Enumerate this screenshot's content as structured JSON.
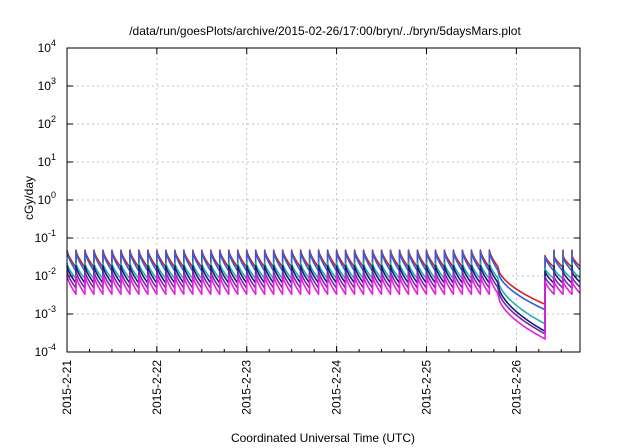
{
  "chart_data": {
    "type": "line",
    "title": "/data/run/goesPlots/archive/2015-02-26/17:00/bryn/../bryn/5daysMars.plot",
    "xlabel": "Coordinated Universal Time (UTC)",
    "ylabel": "cGy/day",
    "y_scale": "log",
    "ylim": [
      0.0001,
      10000
    ],
    "xlim": [
      "2015-02-21 00:00",
      "2015-02-26 17:00"
    ],
    "x_ticks": [
      "2015-2-21",
      "2015-2-22",
      "2015-2-23",
      "2015-2-24",
      "2015-2-25",
      "2015-2-26"
    ],
    "y_ticks": [
      {
        "base": "10",
        "exp": "-4"
      },
      {
        "base": "10",
        "exp": "-3"
      },
      {
        "base": "10",
        "exp": "-2"
      },
      {
        "base": "10",
        "exp": "-1"
      },
      {
        "base": "10",
        "exp": "0"
      },
      {
        "base": "10",
        "exp": "1"
      },
      {
        "base": "10",
        "exp": "2"
      },
      {
        "base": "10",
        "exp": "3"
      },
      {
        "base": "10",
        "exp": "4"
      }
    ],
    "grid": true,
    "legend": "none",
    "sawtooth_period_hours": 2.4,
    "gap": {
      "start": "2015-02-25 19:00",
      "end": "2015-02-26 07:40"
    },
    "series": [
      {
        "color": "#d62020",
        "peak": 0.048,
        "trough": 0.017,
        "gap_end": 0.0018
      },
      {
        "color": "#2f5fd8",
        "peak": 0.045,
        "trough": 0.0135,
        "gap_end": 0.0013
      },
      {
        "color": "#20b2aa",
        "peak": 0.022,
        "trough": 0.0085,
        "gap_end": 0.00055
      },
      {
        "color": "#1a1a7a",
        "peak": 0.0185,
        "trough": 0.0065,
        "gap_end": 0.00035
      },
      {
        "color": "#6b2fa0",
        "peak": 0.0135,
        "trough": 0.0048,
        "gap_end": 0.0003
      },
      {
        "color": "#e81ee0",
        "peak": 0.0105,
        "trough": 0.0033,
        "gap_end": 0.00022
      }
    ]
  }
}
